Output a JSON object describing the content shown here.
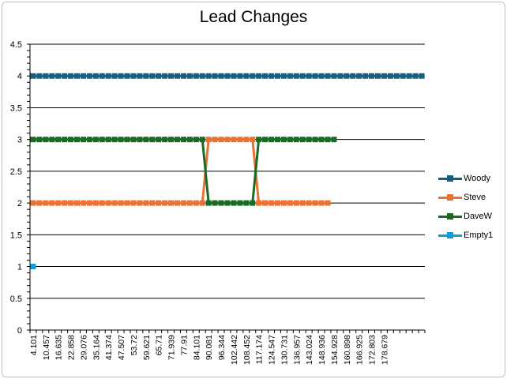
{
  "chart_data": {
    "type": "line",
    "title": "Lead Changes",
    "xlabel": "",
    "ylabel": "",
    "ylim": [
      0,
      4.5
    ],
    "yticks": [
      "0",
      "0.5",
      "1",
      "1.5",
      "2",
      "2.5",
      "3",
      "3.5",
      "4",
      "4.5"
    ],
    "xtick_labels": [
      "4.101",
      "10.457",
      "16.635",
      "22.858",
      "29.076",
      "35.164",
      "41.374",
      "47.507",
      "53.72",
      "59.621",
      "65.71",
      "71.939",
      "77.91",
      "84.101",
      "90.081",
      "96.344",
      "102.442",
      "108.452",
      "117.174",
      "124.547",
      "130.731",
      "136.957",
      "143.024",
      "148.936",
      "154.928",
      "160.898",
      "166.925",
      "172.803",
      "178.679"
    ],
    "grid": true,
    "legend_position": "right",
    "category_count": 63,
    "series": [
      {
        "name": "Woody",
        "color": "#156082",
        "points": [
          [
            0,
            4
          ],
          [
            62,
            4
          ]
        ]
      },
      {
        "name": "Steve",
        "color": "#e97132",
        "points": [
          [
            0,
            2
          ],
          [
            27,
            2
          ],
          [
            28,
            3
          ],
          [
            35,
            3
          ],
          [
            36,
            2
          ],
          [
            47,
            2
          ]
        ]
      },
      {
        "name": "DaveW",
        "color": "#196b24",
        "points": [
          [
            0,
            3
          ],
          [
            27,
            3
          ],
          [
            28,
            2
          ],
          [
            35,
            2
          ],
          [
            36,
            3
          ],
          [
            48,
            3
          ]
        ]
      },
      {
        "name": "Empty1",
        "color": "#0f9ed5",
        "points": [
          [
            0,
            1
          ]
        ]
      }
    ]
  }
}
